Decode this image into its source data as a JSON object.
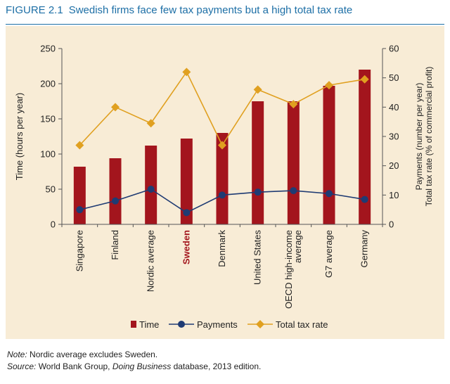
{
  "figure": {
    "label": "FIGURE 2.1",
    "title": "Swedish firms face few tax payments but a high total tax rate"
  },
  "chart_data": {
    "type": "bar",
    "categories": [
      "Singapore",
      "Finland",
      "Nordic average",
      "Sweden",
      "Denmark",
      "United States",
      "OECD high-income average",
      "G7 average",
      "Germany"
    ],
    "category_lines": [
      [
        "Singapore"
      ],
      [
        "Finland"
      ],
      [
        "Nordic average"
      ],
      [
        "Sweden"
      ],
      [
        "Denmark"
      ],
      [
        "United States"
      ],
      [
        "OECD high-income",
        "average"
      ],
      [
        "G7 average"
      ],
      [
        "Germany"
      ]
    ],
    "highlight_category": "Sweden",
    "ylabel_left": "Time (hours per year)",
    "ylabel_right": [
      "Payments (number per year)",
      "Total tax rate (% of commercial profit)"
    ],
    "ylim_left": [
      0,
      250
    ],
    "yticks_left": [
      0,
      50,
      100,
      150,
      200,
      250
    ],
    "ylim_right": [
      0,
      60
    ],
    "yticks_right": [
      0,
      10,
      20,
      30,
      40,
      50,
      60
    ],
    "series": [
      {
        "name": "Time",
        "kind": "bar",
        "axis": "left",
        "color": "#a3151d",
        "values": [
          82,
          94,
          112,
          122,
          130,
          175,
          175,
          197,
          220
        ]
      },
      {
        "name": "Payments",
        "kind": "line",
        "axis": "right",
        "color": "#1f3b73",
        "values": [
          5,
          8,
          12,
          4,
          10,
          11,
          11.5,
          10.5,
          8.5
        ]
      },
      {
        "name": "Total tax rate",
        "kind": "line",
        "axis": "right",
        "color": "#e0a020",
        "values": [
          27,
          40,
          34.5,
          52,
          27,
          46,
          41,
          47.5,
          49.5
        ]
      }
    ],
    "legend_position": "bottom",
    "grid": false
  },
  "notes": {
    "note_label": "Note:",
    "note_text": " Nordic average excludes Sweden.",
    "source_label": "Source:",
    "source_pre": " World Bank Group, ",
    "source_italic": "Doing Business",
    "source_post": " database, 2013 edition."
  },
  "colors": {
    "title": "#1d6fa6",
    "panel_background": "#f8ecd6",
    "highlight_label": "#a3151d"
  }
}
